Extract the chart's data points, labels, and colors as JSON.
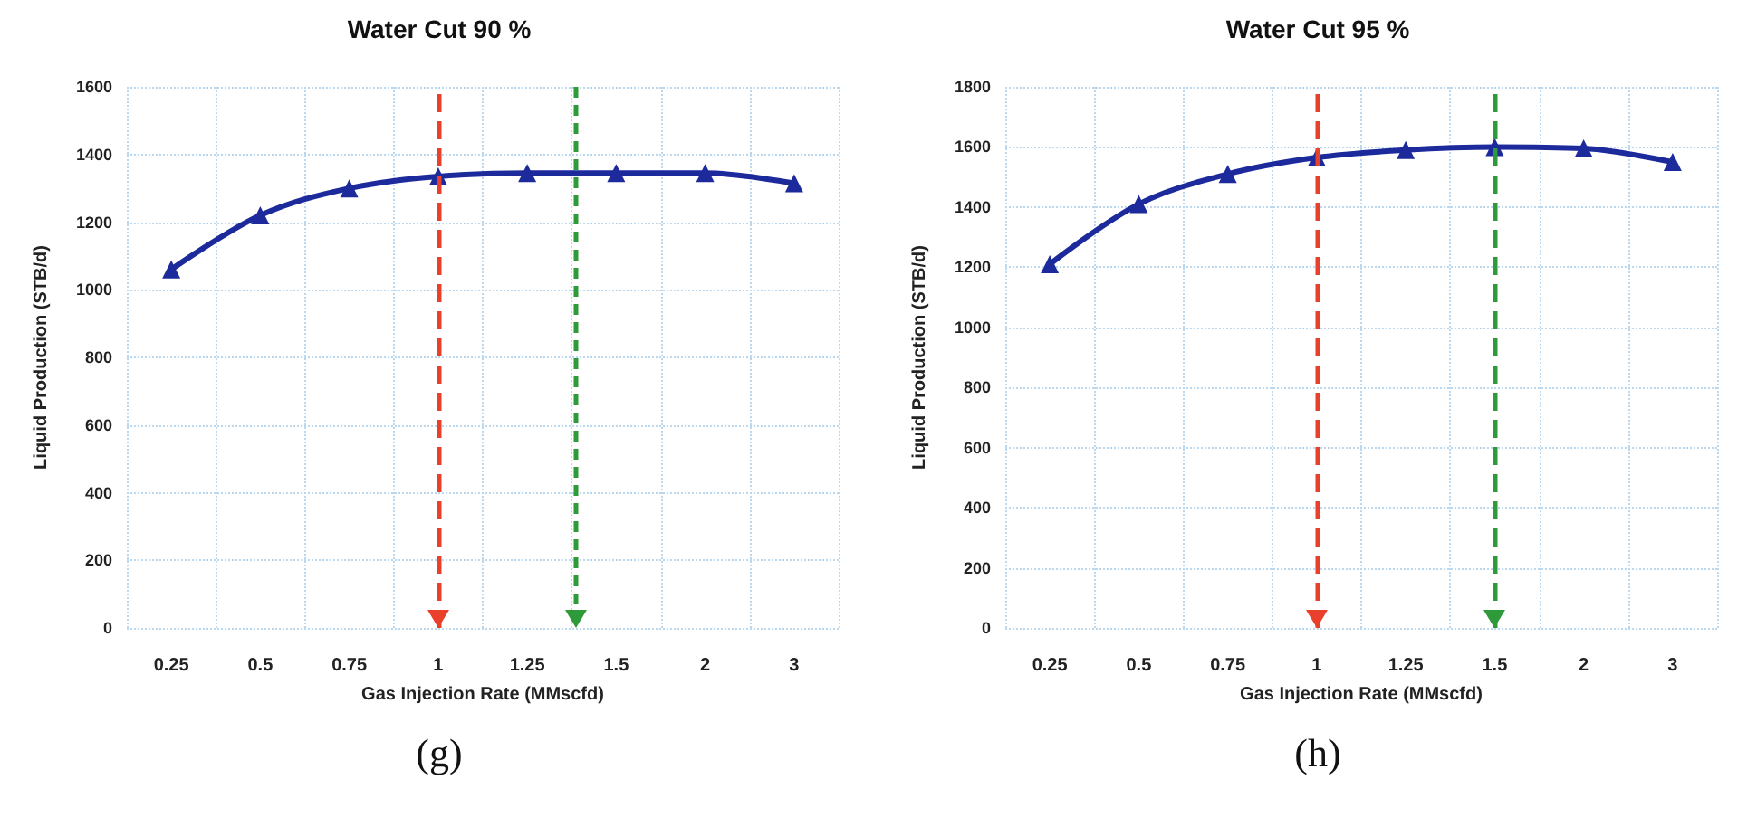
{
  "chart_data": [
    {
      "type": "line",
      "title": "Water Cut 90 %",
      "xlabel": "Gas Injection Rate (MMscfd)",
      "ylabel": "Liquid Production (STB/d)",
      "categories": [
        "0.25",
        "0.5",
        "0.75",
        "1",
        "1.25",
        "1.5",
        "2",
        "3"
      ],
      "series": [
        {
          "color": "#1c2a9c",
          "values": [
            1060,
            1220,
            1300,
            1335,
            1345,
            1345,
            1345,
            1315
          ]
        }
      ],
      "ylim": [
        0,
        1600
      ],
      "yticks": [
        0,
        200,
        400,
        600,
        800,
        1000,
        1200,
        1400,
        1600
      ],
      "grid": true,
      "marker": "triangle",
      "ref_lines": [
        {
          "axis": "x",
          "value": "1",
          "color": "#e8402a",
          "line_style": "dashed"
        }
      ],
      "annotations": [
        "(g)"
      ]
    },
    {
      "type": "line",
      "title": "Water Cut 95 %",
      "xlabel": "Gas Injection Rate (MMscfd)",
      "ylabel": "Liquid Production (STB/d)",
      "categories": [
        "0.25",
        "0.5",
        "0.75",
        "1",
        "1.25",
        "1.5",
        "2",
        "3"
      ],
      "series": [
        {
          "color": "#1c2a9c",
          "values": [
            1210,
            1410,
            1510,
            1565,
            1590,
            1600,
            1595,
            1550
          ]
        }
      ],
      "ylim": [
        0,
        1800
      ],
      "yticks": [
        0,
        200,
        400,
        600,
        800,
        1000,
        1200,
        1400,
        1600,
        1800
      ],
      "grid": true,
      "marker": "triangle",
      "ref_lines": [
        {
          "axis": "x",
          "value": "1",
          "color": "#e8402a",
          "line_style": "dashed"
        },
        {
          "axis": "x",
          "value": "1.5",
          "color": "#2e9a3a",
          "line_style": "dashed"
        }
      ],
      "annotations": [
        "(h)"
      ]
    }
  ]
}
